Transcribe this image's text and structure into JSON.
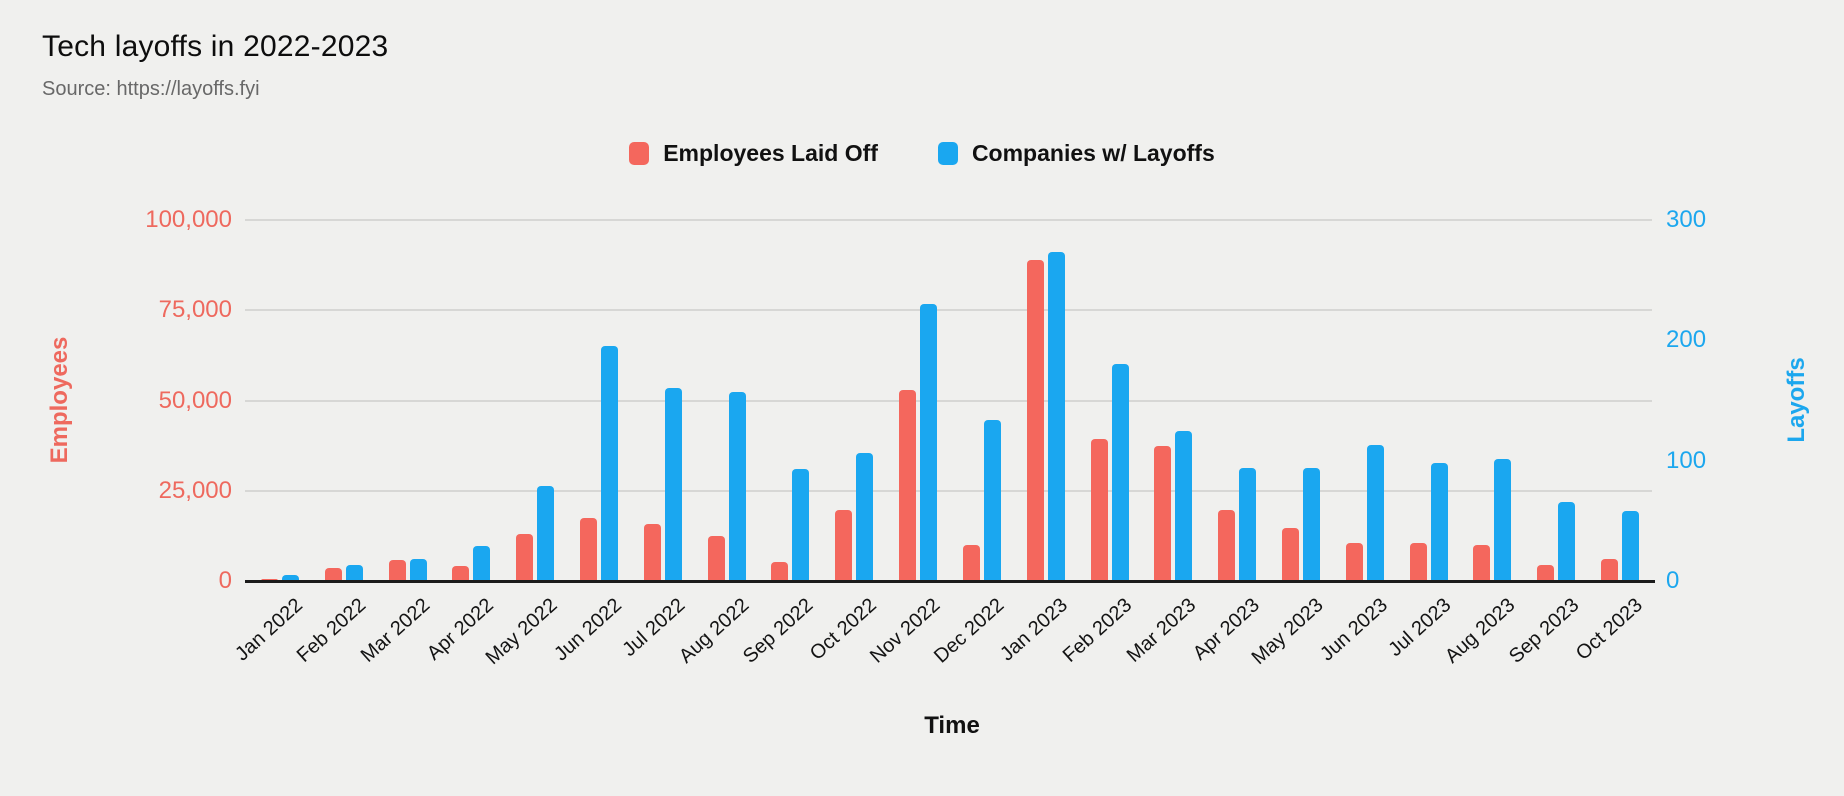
{
  "page": {
    "background_color": "#f0f0ee"
  },
  "header": {
    "title": "Tech layoffs in 2022-2023",
    "source": "Source: https://layoffs.fyi"
  },
  "legend": {
    "items": [
      {
        "label": "Employees Laid Off",
        "color": "#f4675d"
      },
      {
        "label": "Companies w/ Layoffs",
        "color": "#1aa7f0"
      }
    ]
  },
  "chart_data": {
    "type": "bar",
    "title": "Tech layoffs in 2022-2023",
    "xlabel": "Time",
    "ylabel": "Employees",
    "y2label": "Layoffs",
    "ylim": [
      0,
      100000
    ],
    "y2lim": [
      0,
      300
    ],
    "grid": true,
    "legend_position": "top",
    "y_ticks": [
      {
        "value": 0,
        "label": "0"
      },
      {
        "value": 25000,
        "label": "25,000"
      },
      {
        "value": 50000,
        "label": "50,000"
      },
      {
        "value": 75000,
        "label": "75,000"
      },
      {
        "value": 100000,
        "label": "100,000"
      }
    ],
    "y2_ticks": [
      {
        "value": 0,
        "label": "0"
      },
      {
        "value": 100,
        "label": "100"
      },
      {
        "value": 200,
        "label": "200"
      },
      {
        "value": 300,
        "label": "300"
      }
    ],
    "categories": [
      "Jan 2022",
      "Feb 2022",
      "Mar 2022",
      "Apr 2022",
      "May 2022",
      "Jun 2022",
      "Jul 2022",
      "Aug 2022",
      "Sep 2022",
      "Oct 2022",
      "Nov 2022",
      "Dec 2022",
      "Jan 2023",
      "Feb 2023",
      "Mar 2023",
      "Apr 2023",
      "May 2023",
      "Jun 2023",
      "Jul 2023",
      "Aug 2023",
      "Sep 2023",
      "Oct 2023"
    ],
    "series": [
      {
        "name": "Employees Laid Off",
        "axis": "left",
        "color": "#f4675d",
        "values": [
          500,
          3600,
          5700,
          4200,
          13000,
          17400,
          15800,
          12500,
          5200,
          19700,
          53000,
          9900,
          89000,
          39200,
          37500,
          19700,
          14600,
          10600,
          10400,
          9900,
          4300,
          6000
        ]
      },
      {
        "name": "Companies w/ Layoffs",
        "axis": "right",
        "color": "#1aa7f0",
        "values": [
          5,
          13,
          18,
          29,
          79,
          195,
          160,
          157,
          93,
          106,
          230,
          134,
          273,
          180,
          125,
          94,
          94,
          113,
          98,
          101,
          66,
          58
        ]
      }
    ]
  }
}
